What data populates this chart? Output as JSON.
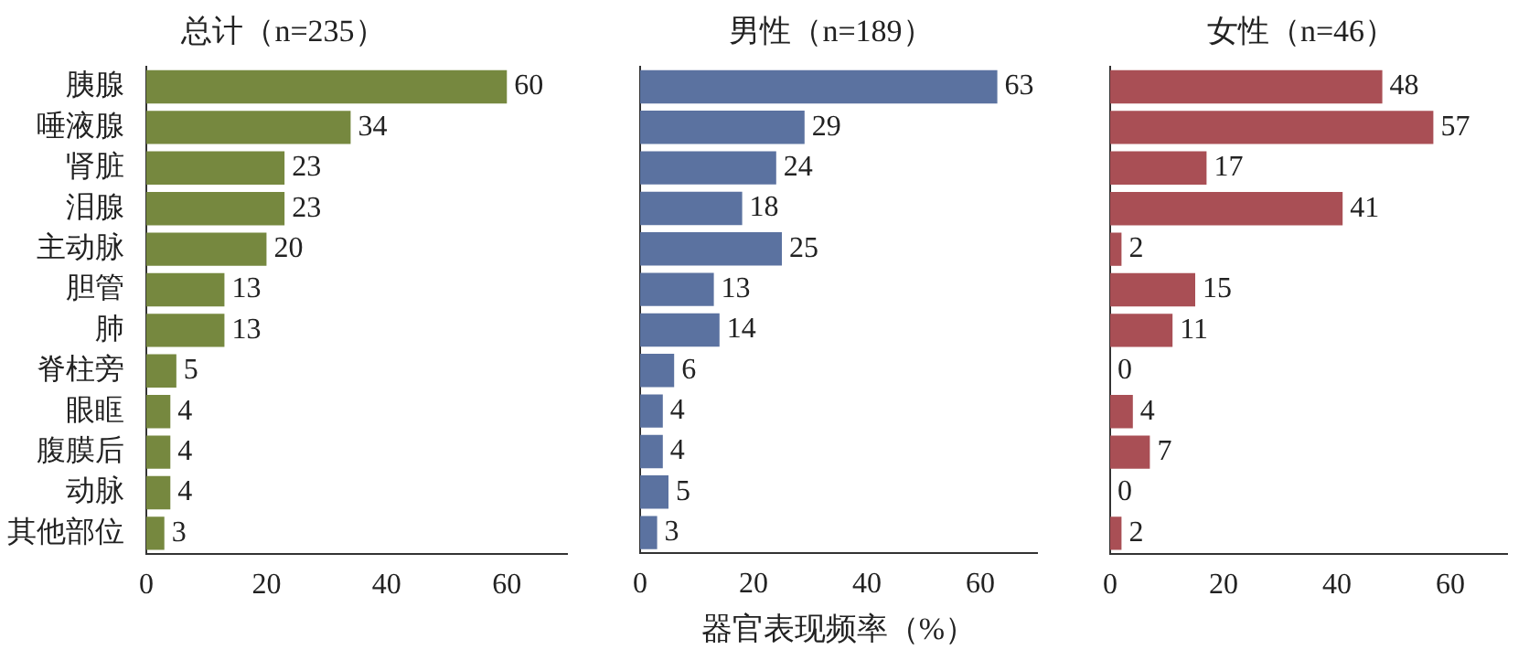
{
  "chart_data": [
    {
      "type": "bar",
      "orientation": "horizontal",
      "title": "总计（n=235）",
      "categories": [
        "胰腺",
        "唾液腺",
        "肾脏",
        "泪腺",
        "主动脉",
        "胆管",
        "肺",
        "脊柱旁",
        "眼眶",
        "腹膜后",
        "动脉",
        "其他部位"
      ],
      "values": [
        60,
        34,
        23,
        23,
        20,
        13,
        13,
        5,
        4,
        4,
        4,
        3
      ],
      "color": "#76883f",
      "xlim": [
        0,
        70
      ],
      "xticks": [
        0,
        20,
        40,
        60
      ],
      "data_labels": true,
      "grid": false,
      "legend": false
    },
    {
      "type": "bar",
      "orientation": "horizontal",
      "title": "男性（n=189）",
      "xlabel": "器官表现频率（%）",
      "categories": [
        null,
        null,
        null,
        null,
        null,
        null,
        null,
        null,
        null,
        null,
        null,
        null
      ],
      "values": [
        63,
        29,
        24,
        18,
        25,
        13,
        14,
        6,
        4,
        4,
        5,
        3
      ],
      "color": "#5b72a0",
      "xlim": [
        0,
        70
      ],
      "xticks": [
        0,
        20,
        40,
        60
      ],
      "data_labels": true,
      "grid": false,
      "legend": false,
      "tick_labels": "x"
    },
    {
      "type": "bar",
      "orientation": "horizontal",
      "title": "女性（n=46）",
      "categories": [
        null,
        null,
        null,
        null,
        null,
        null,
        null,
        null,
        null,
        null,
        null,
        null
      ],
      "values": [
        48,
        57,
        17,
        41,
        2,
        15,
        11,
        0,
        4,
        7,
        0,
        2
      ],
      "color": "#a94f55",
      "xlim": [
        0,
        70
      ],
      "xticks": [
        0,
        20,
        40,
        60
      ],
      "data_labels": true,
      "grid": false,
      "legend": false,
      "tick_labels": "x"
    }
  ]
}
